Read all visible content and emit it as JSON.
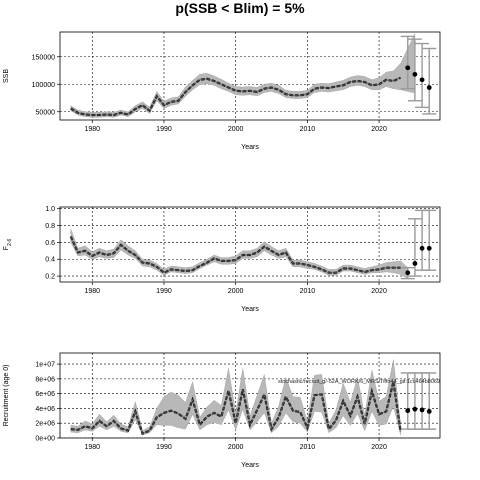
{
  "page": {
    "title": "p(SSB < Blim) = 5%"
  },
  "colors": {
    "band": "#b8b8b8",
    "band_edge": "#9a9a9a",
    "median": "#202020",
    "projection_whisker": "#9a9a9a",
    "projection_point": "#000000",
    "grid": "#000000"
  },
  "chart_data": [
    {
      "type": "line",
      "name": "ssb-panel",
      "xlabel": "Years",
      "ylabel": "SSB",
      "xlim": [
        1975.5,
        2028.5
      ],
      "ylim": [
        35000,
        195000
      ],
      "x_ticks": [
        1980,
        1990,
        2000,
        2010,
        2020
      ],
      "y_ticks": [
        50000,
        100000,
        150000
      ],
      "y_tick_labels": [
        "50000",
        "100000",
        "150000"
      ],
      "grid": true,
      "years": [
        1977,
        1978,
        1979,
        1980,
        1981,
        1982,
        1983,
        1984,
        1985,
        1986,
        1987,
        1988,
        1989,
        1990,
        1991,
        1992,
        1993,
        1994,
        1995,
        1996,
        1997,
        1998,
        1999,
        2000,
        2001,
        2002,
        2003,
        2004,
        2005,
        2006,
        2007,
        2008,
        2009,
        2010,
        2011,
        2012,
        2013,
        2014,
        2015,
        2016,
        2017,
        2018,
        2019,
        2020,
        2021,
        2022,
        2023
      ],
      "median": [
        56000,
        48000,
        45000,
        44000,
        44000,
        45000,
        44000,
        48000,
        45000,
        55000,
        62000,
        52000,
        78000,
        62000,
        68000,
        70000,
        86000,
        98000,
        108000,
        110000,
        106000,
        100000,
        94000,
        88000,
        87000,
        88000,
        86000,
        92000,
        94000,
        90000,
        82000,
        80000,
        80000,
        82000,
        92000,
        94000,
        93000,
        96000,
        98000,
        104000,
        106000,
        104000,
        98000,
        100000,
        108000,
        106000,
        112000
      ],
      "lower": [
        52000,
        44000,
        41000,
        40000,
        40000,
        41000,
        40000,
        44000,
        41000,
        50000,
        56000,
        47000,
        70000,
        56000,
        62000,
        64000,
        78000,
        90000,
        99000,
        101000,
        98000,
        92000,
        87000,
        81000,
        80000,
        81000,
        79000,
        85000,
        87000,
        83000,
        76000,
        74000,
        74000,
        76000,
        85000,
        87000,
        86000,
        88000,
        90000,
        96000,
        98000,
        96000,
        90000,
        90000,
        96000,
        92000,
        90000
      ],
      "upper": [
        61000,
        53000,
        50000,
        49000,
        49000,
        50000,
        49000,
        53000,
        50000,
        61000,
        68000,
        58000,
        87000,
        69000,
        75000,
        77000,
        95000,
        107000,
        118000,
        120000,
        115000,
        109000,
        102000,
        96000,
        95000,
        96000,
        94000,
        100000,
        102000,
        98000,
        89000,
        87000,
        87000,
        89000,
        100000,
        102000,
        101000,
        104000,
        107000,
        113000,
        116000,
        114000,
        108000,
        112000,
        122000,
        124000,
        138000
      ],
      "projection": {
        "years": [
          2024,
          2025,
          2026,
          2027
        ],
        "median": [
          130000,
          118000,
          108000,
          94000
        ],
        "lower": [
          92000,
          70000,
          58000,
          46000
        ],
        "upper": [
          187000,
          182000,
          174000,
          165000
        ]
      },
      "fan_to_year": 2025,
      "fan_upper_end": 192000,
      "fan_lower_end": 84000
    },
    {
      "type": "line",
      "name": "f-panel",
      "xlabel": "Years",
      "ylabel": "F",
      "ylabel_subscript": "2-6",
      "xlim": [
        1975.5,
        2028.5
      ],
      "ylim": [
        0.13,
        1.02
      ],
      "x_ticks": [
        1980,
        1990,
        2000,
        2010,
        2020
      ],
      "y_ticks": [
        0.2,
        0.4,
        0.6,
        0.8,
        1.0
      ],
      "y_tick_labels": [
        "0.2",
        "0.4",
        "0.6",
        "0.8",
        "1.0"
      ],
      "grid": true,
      "years": [
        1977,
        1978,
        1979,
        1980,
        1981,
        1982,
        1983,
        1984,
        1985,
        1986,
        1987,
        1988,
        1989,
        1990,
        1991,
        1992,
        1993,
        1994,
        1995,
        1996,
        1997,
        1998,
        1999,
        2000,
        2001,
        2002,
        2003,
        2004,
        2005,
        2006,
        2007,
        2008,
        2009,
        2010,
        2011,
        2012,
        2013,
        2014,
        2015,
        2016,
        2017,
        2018,
        2019,
        2020,
        2021,
        2022,
        2023
      ],
      "median": [
        0.67,
        0.48,
        0.5,
        0.44,
        0.48,
        0.45,
        0.47,
        0.57,
        0.5,
        0.45,
        0.36,
        0.35,
        0.31,
        0.24,
        0.28,
        0.27,
        0.26,
        0.27,
        0.32,
        0.36,
        0.41,
        0.38,
        0.38,
        0.39,
        0.45,
        0.45,
        0.48,
        0.55,
        0.5,
        0.45,
        0.48,
        0.35,
        0.35,
        0.33,
        0.31,
        0.28,
        0.24,
        0.24,
        0.29,
        0.29,
        0.27,
        0.25,
        0.27,
        0.28,
        0.3,
        0.3,
        0.3
      ],
      "lower": [
        0.6,
        0.44,
        0.45,
        0.4,
        0.43,
        0.41,
        0.42,
        0.51,
        0.45,
        0.41,
        0.32,
        0.31,
        0.27,
        0.21,
        0.25,
        0.24,
        0.23,
        0.24,
        0.29,
        0.33,
        0.37,
        0.34,
        0.34,
        0.35,
        0.41,
        0.41,
        0.43,
        0.5,
        0.45,
        0.41,
        0.43,
        0.31,
        0.31,
        0.29,
        0.28,
        0.25,
        0.21,
        0.21,
        0.26,
        0.26,
        0.24,
        0.22,
        0.24,
        0.24,
        0.25,
        0.24,
        0.22
      ],
      "upper": [
        0.76,
        0.53,
        0.56,
        0.49,
        0.53,
        0.5,
        0.52,
        0.63,
        0.56,
        0.5,
        0.4,
        0.39,
        0.35,
        0.28,
        0.32,
        0.31,
        0.3,
        0.31,
        0.36,
        0.4,
        0.45,
        0.42,
        0.42,
        0.44,
        0.5,
        0.5,
        0.53,
        0.61,
        0.55,
        0.5,
        0.53,
        0.39,
        0.39,
        0.37,
        0.35,
        0.32,
        0.28,
        0.28,
        0.33,
        0.33,
        0.31,
        0.29,
        0.31,
        0.33,
        0.36,
        0.37,
        0.38
      ],
      "projection": {
        "years": [
          2024,
          2025,
          2026,
          2027
        ],
        "median": [
          0.24,
          0.35,
          0.53,
          0.53
        ],
        "lower": [
          0.17,
          0.2,
          0.27,
          0.27
        ],
        "upper": [
          0.3,
          0.88,
          0.98,
          0.98
        ]
      },
      "fan_to_year": 2024,
      "fan_upper_end": 0.3,
      "fan_lower_end": 0.17
    },
    {
      "type": "line",
      "name": "recruitment-panel",
      "xlabel": "Years",
      "ylabel": "Recruitment (age 0)",
      "xlim": [
        1975.5,
        2028.5
      ],
      "ylim": [
        0,
        11500000
      ],
      "x_ticks": [
        1980,
        1990,
        2000,
        2010,
        2020
      ],
      "y_ticks": [
        0,
        2000000,
        4000000,
        6000000,
        8000000,
        10000000
      ],
      "y_tick_labels": [
        "0e+00",
        "2e+06",
        "4e+06",
        "6e+06",
        "8e+06",
        "1e+07"
      ],
      "grid": true,
      "annotation": "stochastic/recruit_g/-52A_WORK/6_MRS/Tiffo44_git:1cc464b8069",
      "years": [
        1977,
        1978,
        1979,
        1980,
        1981,
        1982,
        1983,
        1984,
        1985,
        1986,
        1987,
        1988,
        1989,
        1990,
        1991,
        1992,
        1993,
        1994,
        1995,
        1996,
        1997,
        1998,
        1999,
        2000,
        2001,
        2002,
        2003,
        2004,
        2005,
        2006,
        2007,
        2008,
        2009,
        2010,
        2011,
        2012,
        2013,
        2014,
        2015,
        2016,
        2017,
        2018,
        2019,
        2020,
        2021,
        2022,
        2023
      ],
      "median": [
        1200000,
        1100000,
        1600000,
        1300000,
        2300000,
        1600000,
        2300000,
        1300000,
        1000000,
        3600000,
        600000,
        1000000,
        2800000,
        3400000,
        3700000,
        3300000,
        2600000,
        5200000,
        1800000,
        2900000,
        3400000,
        2900000,
        6400000,
        2000000,
        6600000,
        1800000,
        3800000,
        5900000,
        1200000,
        2800000,
        5600000,
        3700000,
        3500000,
        1400000,
        5800000,
        5900000,
        1200000,
        2400000,
        5000000,
        3000000,
        5600000,
        1900000,
        6300000,
        3200000,
        3600000,
        7600000,
        900000
      ],
      "lower": [
        800000,
        700000,
        1100000,
        900000,
        1600000,
        1100000,
        1600000,
        900000,
        700000,
        2500000,
        400000,
        700000,
        1800000,
        1700000,
        1700000,
        1400000,
        1200000,
        3200000,
        1100000,
        1800000,
        2100000,
        1800000,
        3800000,
        1100000,
        3900000,
        1100000,
        2200000,
        3400000,
        700000,
        1600000,
        3400000,
        2200000,
        2000000,
        800000,
        3600000,
        3500000,
        700000,
        1400000,
        3000000,
        1700000,
        3300000,
        1000000,
        3600000,
        1700000,
        1900000,
        4300000,
        400000
      ],
      "upper": [
        1700000,
        1600000,
        2300000,
        1900000,
        3200000,
        2200000,
        3100000,
        1900000,
        1500000,
        4900000,
        1000000,
        1500000,
        4000000,
        5600000,
        6200000,
        5800000,
        4800000,
        7600000,
        2800000,
        4200000,
        5100000,
        4400000,
        9400000,
        3400000,
        9400000,
        3000000,
        5800000,
        8600000,
        2000000,
        4300000,
        8200000,
        5600000,
        5500000,
        2300000,
        8500000,
        8600000,
        2000000,
        3800000,
        7400000,
        4800000,
        8200000,
        3100000,
        9200000,
        5000000,
        5600000,
        10600000,
        1900000
      ],
      "projection": {
        "years": [
          2024,
          2025,
          2026,
          2027
        ],
        "median": [
          3700000,
          3900000,
          3800000,
          3600000
        ],
        "lower": [
          1200000,
          1200000,
          1200000,
          1200000
        ],
        "upper": [
          8800000,
          8800000,
          8800000,
          8800000
        ]
      },
      "fan_to_year": null
    }
  ]
}
